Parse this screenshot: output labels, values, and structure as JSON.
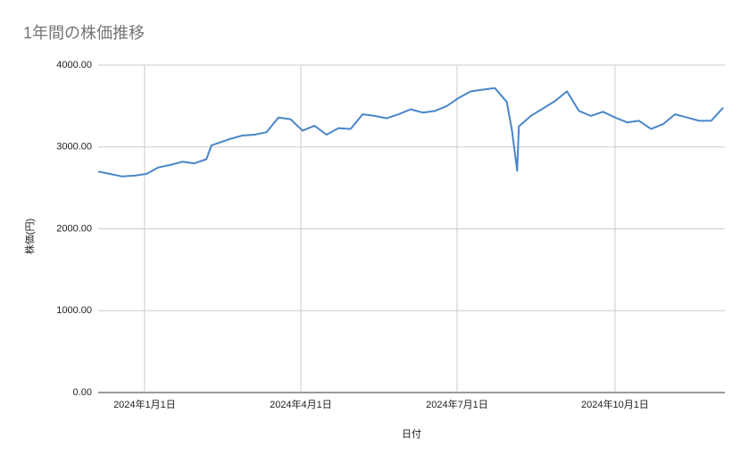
{
  "chart_data": {
    "type": "line",
    "title": "1年間の株価推移",
    "x_label": "日付",
    "y_label": "株価(円)",
    "x": [
      "2023-12-05",
      "2023-12-12",
      "2023-12-19",
      "2023-12-26",
      "2024-01-02",
      "2024-01-09",
      "2024-01-16",
      "2024-01-23",
      "2024-01-30",
      "2024-02-06",
      "2024-02-09",
      "2024-02-20",
      "2024-02-27",
      "2024-03-05",
      "2024-03-12",
      "2024-03-19",
      "2024-03-26",
      "2024-04-02",
      "2024-04-09",
      "2024-04-16",
      "2024-04-23",
      "2024-04-30",
      "2024-05-07",
      "2024-05-14",
      "2024-05-21",
      "2024-05-28",
      "2024-06-04",
      "2024-06-11",
      "2024-06-18",
      "2024-06-25",
      "2024-07-02",
      "2024-07-09",
      "2024-07-16",
      "2024-07-23",
      "2024-07-30",
      "2024-08-02",
      "2024-08-05",
      "2024-08-06",
      "2024-08-13",
      "2024-08-20",
      "2024-08-27",
      "2024-09-03",
      "2024-09-10",
      "2024-09-17",
      "2024-09-24",
      "2024-10-01",
      "2024-10-08",
      "2024-10-15",
      "2024-10-22",
      "2024-10-29",
      "2024-11-05",
      "2024-11-12",
      "2024-11-19",
      "2024-11-26",
      "2024-12-03"
    ],
    "series": [
      {
        "name": "株価",
        "color": "#4a86c8",
        "values": [
          2700,
          2670,
          2640,
          2650,
          2670,
          2750,
          2780,
          2820,
          2800,
          2850,
          3020,
          3100,
          3140,
          3150,
          3180,
          3360,
          3340,
          3200,
          3260,
          3150,
          3230,
          3220,
          3400,
          3380,
          3350,
          3400,
          3460,
          3420,
          3440,
          3500,
          3600,
          3680,
          3700,
          3720,
          3550,
          3200,
          2710,
          3250,
          3380,
          3470,
          3560,
          3680,
          3440,
          3380,
          3430,
          3360,
          3300,
          3320,
          3220,
          3280,
          3400,
          3360,
          3320,
          3320,
          3480
        ]
      }
    ],
    "xlim": [
      "2023-12-05",
      "2024-12-04"
    ],
    "xticks": [
      {
        "value": "2024-01-01",
        "label": "2024年1月1日"
      },
      {
        "value": "2024-04-01",
        "label": "2024年4月1日"
      },
      {
        "value": "2024-07-01",
        "label": "2024年7月1日"
      },
      {
        "value": "2024-10-01",
        "label": "2024年10月1日"
      }
    ],
    "ylim": [
      0,
      4000
    ],
    "yticks": [
      {
        "value": 0,
        "label": "0.00"
      },
      {
        "value": 1000,
        "label": "1000.00"
      },
      {
        "value": 2000,
        "label": "2000.00"
      },
      {
        "value": 3000,
        "label": "3000.00"
      },
      {
        "value": 4000,
        "label": "4000.00"
      }
    ],
    "grid": true
  }
}
